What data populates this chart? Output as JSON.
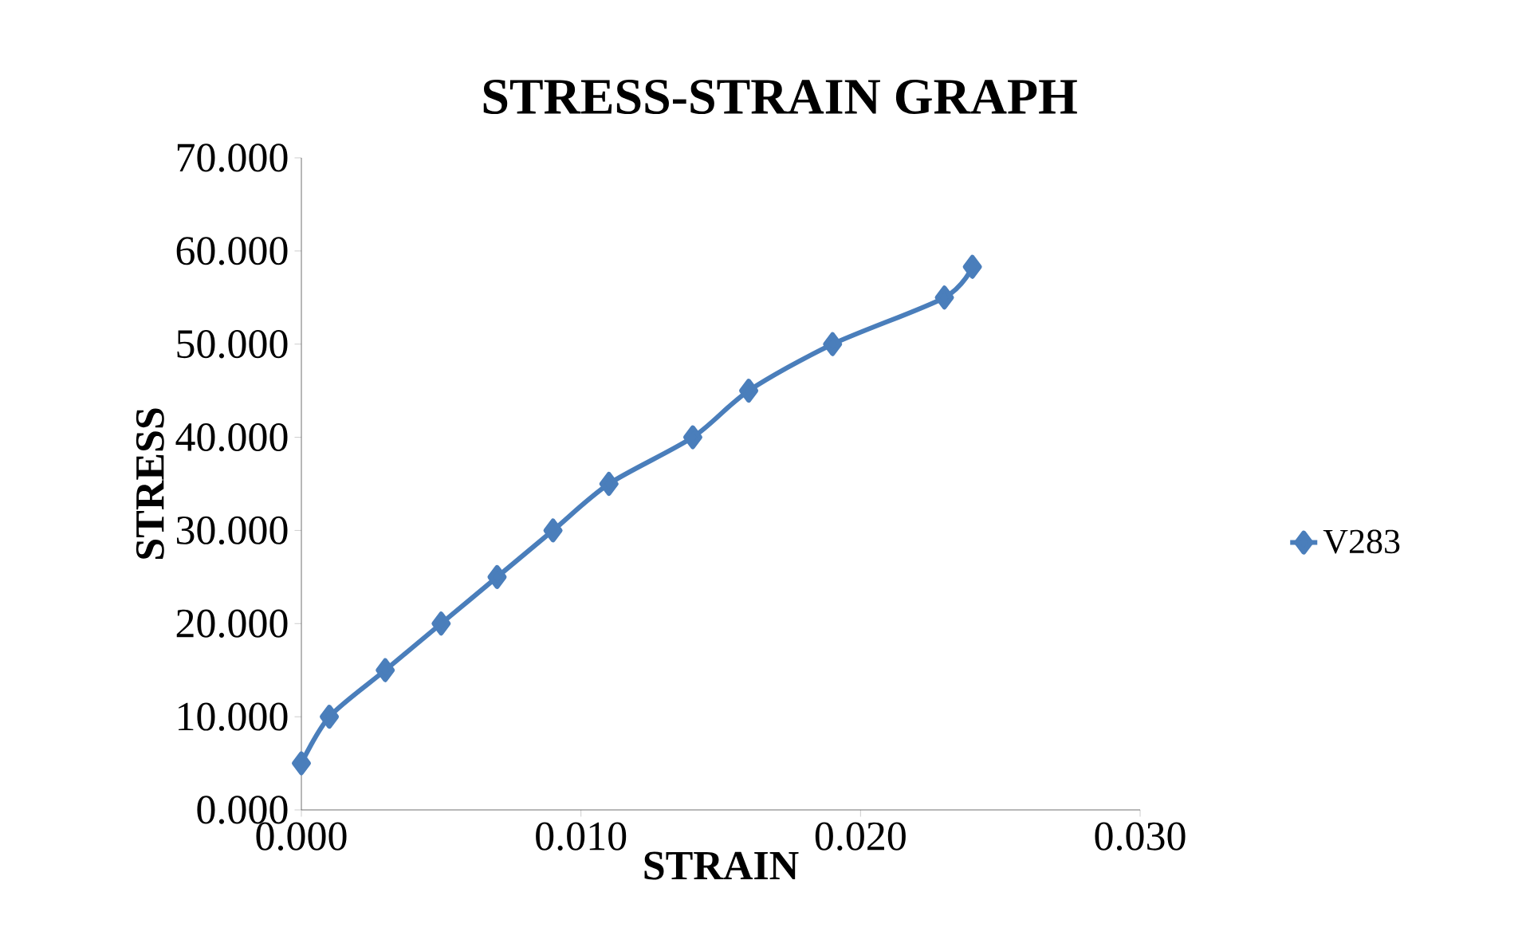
{
  "chart_data": {
    "type": "line",
    "title": "STRESS-STRAIN GRAPH",
    "xlabel": "STRAIN",
    "ylabel": "STRESS",
    "x": [
      0.0,
      0.001,
      0.003,
      0.005,
      0.007,
      0.009,
      0.011,
      0.014,
      0.016,
      0.019,
      0.023,
      0.024
    ],
    "series": [
      {
        "name": "V283",
        "color": "#4a7ebb",
        "values": [
          5,
          10,
          15,
          20,
          25,
          30,
          35,
          40,
          45,
          50,
          55,
          58.3
        ]
      }
    ],
    "xlim": [
      0,
      0.03
    ],
    "xticks": [
      {
        "value": 0,
        "label": "0.000"
      },
      {
        "value": 0.01,
        "label": "0.010"
      },
      {
        "value": 0.02,
        "label": "0.020"
      },
      {
        "value": 0.03,
        "label": "0.030"
      }
    ],
    "ylim": [
      0,
      70
    ],
    "yticks": [
      {
        "value": 0,
        "label": "0.000"
      },
      {
        "value": 10,
        "label": "10.000"
      },
      {
        "value": 20,
        "label": "20.000"
      },
      {
        "value": 30,
        "label": "30.000"
      },
      {
        "value": 40,
        "label": "40.000"
      },
      {
        "value": 50,
        "label": "50.000"
      },
      {
        "value": 60,
        "label": "60.000"
      },
      {
        "value": 70,
        "label": "70.000"
      }
    ],
    "grid": false,
    "legend": "right",
    "marker": "diamond",
    "line_style": "solid"
  }
}
